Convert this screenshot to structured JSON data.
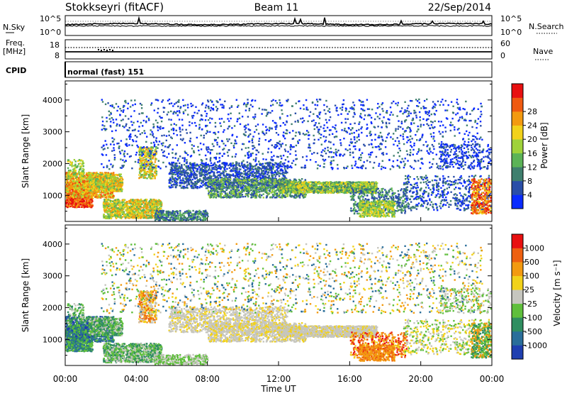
{
  "header": {
    "station": "Stokkseyri (fitACF)",
    "beam": "Beam 11",
    "date": "22/Sep/2014"
  },
  "noise_panel": {
    "left_label": "N.Sky",
    "right_label": "N.Search",
    "ticks_left": [
      {
        "base": "10",
        "exp": "^5"
      },
      {
        "base": "10",
        "exp": "^0"
      }
    ],
    "ticks_right": [
      {
        "base": "10",
        "exp": "^5"
      },
      {
        "base": "10",
        "exp": "^0"
      }
    ]
  },
  "freq_panel": {
    "left_label_1": "Freq.",
    "left_label_2": "[MHz]",
    "right_label": "Nave",
    "left_ticks": [
      "18",
      "8"
    ],
    "right_ticks": [
      "60",
      "0"
    ]
  },
  "cpid_panel": {
    "label": "CPID",
    "program": "normal (fast) 151"
  },
  "chart_data": [
    {
      "type": "heatmap",
      "name": "power",
      "ylabel": "Slant Range [km]",
      "y_ticks": [
        "1000",
        "2000",
        "3000",
        "4000"
      ],
      "y_values": [
        1000,
        2000,
        3000,
        4000
      ],
      "ylim": [
        180,
        4600
      ],
      "colorbar": {
        "label": "Power [dB]",
        "ticks": [
          "4",
          "8",
          "12",
          "16",
          "20",
          "24",
          "28"
        ],
        "colors": [
          "#0a2bff",
          "#2a4ea8",
          "#3f7f6e",
          "#5cb357",
          "#9fd23a",
          "#f2d21a",
          "#f39a10",
          "#ef5a10",
          "#e81010"
        ]
      }
    },
    {
      "type": "heatmap",
      "name": "velocity",
      "ylabel": "Slant Range [km]",
      "y_ticks": [
        "1000",
        "2000",
        "3000",
        "4000"
      ],
      "y_values": [
        1000,
        2000,
        3000,
        4000
      ],
      "ylim": [
        180,
        4600
      ],
      "xlabel": "Time UT",
      "x_ticks": [
        "00:00",
        "04:00",
        "08:00",
        "12:00",
        "16:00",
        "20:00",
        "00:00"
      ],
      "colorbar": {
        "label": "Velocity [m s⁻¹]",
        "ticks": [
          "1000",
          "500",
          "100",
          "25",
          "-25",
          "-100",
          "-500",
          "-1000"
        ],
        "colors": [
          "#1f3fb0",
          "#2a6e9a",
          "#2f8e60",
          "#5fbf3c",
          "#c6c6bf",
          "#f2d21a",
          "#f39a10",
          "#ee6010",
          "#e81010"
        ]
      }
    }
  ]
}
